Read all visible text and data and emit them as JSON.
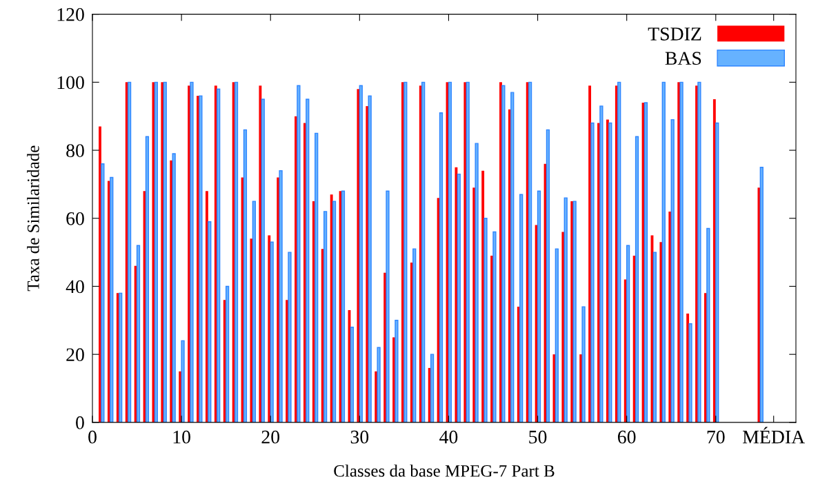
{
  "chart_data": {
    "type": "bar",
    "xlabel": "Classes da base MPEG-7 Part B",
    "ylabel": "Taxa de Similaridade",
    "x": [
      1,
      2,
      3,
      4,
      5,
      6,
      7,
      8,
      9,
      10,
      11,
      12,
      13,
      14,
      15,
      16,
      17,
      18,
      19,
      20,
      21,
      22,
      23,
      24,
      25,
      26,
      27,
      28,
      29,
      30,
      31,
      32,
      33,
      34,
      35,
      36,
      37,
      38,
      39,
      40,
      41,
      42,
      43,
      44,
      45,
      46,
      47,
      48,
      49,
      50,
      51,
      52,
      53,
      54,
      55,
      56,
      57,
      58,
      59,
      60,
      61,
      62,
      63,
      64,
      65,
      66,
      67,
      68,
      69,
      70,
      75
    ],
    "series": [
      {
        "name": "TSDIZ",
        "color": "#ff0000",
        "values": [
          87,
          71,
          38,
          100,
          46,
          68,
          100,
          100,
          77,
          15,
          99,
          96,
          68,
          99,
          36,
          100,
          72,
          54,
          99,
          55,
          72,
          36,
          90,
          88,
          65,
          51,
          67,
          68,
          33,
          98,
          93,
          15,
          44,
          25,
          100,
          47,
          99,
          16,
          66,
          100,
          75,
          100,
          69,
          74,
          49,
          100,
          92,
          34,
          100,
          58,
          76,
          20,
          56,
          65,
          20,
          99,
          88,
          89,
          99,
          42,
          49,
          94,
          55,
          53,
          62,
          100,
          32,
          99,
          38,
          95,
          69
        ]
      },
      {
        "name": "BAS",
        "color": "#66b2ff",
        "values": [
          76,
          72,
          38,
          100,
          52,
          84,
          100,
          100,
          79,
          24,
          100,
          96,
          59,
          98,
          40,
          100,
          86,
          65,
          95,
          53,
          74,
          50,
          99,
          95,
          85,
          62,
          65,
          68,
          28,
          99,
          96,
          22,
          68,
          30,
          100,
          51,
          100,
          20,
          91,
          100,
          73,
          100,
          82,
          60,
          56,
          99,
          97,
          67,
          100,
          68,
          86,
          51,
          66,
          65,
          34,
          88,
          93,
          88,
          100,
          52,
          84,
          94,
          50,
          100,
          89,
          100,
          29,
          100,
          57,
          88,
          75
        ]
      }
    ],
    "xlim": [
      0,
      79
    ],
    "xticks": [
      0,
      10,
      20,
      30,
      40,
      50,
      60,
      70,
      {
        "value": 76.5,
        "label": "MÉDIA"
      }
    ],
    "ylim": [
      0,
      120
    ],
    "yticks": [
      0,
      20,
      40,
      60,
      80,
      100,
      120
    ],
    "grid": false,
    "legend": "top right"
  }
}
